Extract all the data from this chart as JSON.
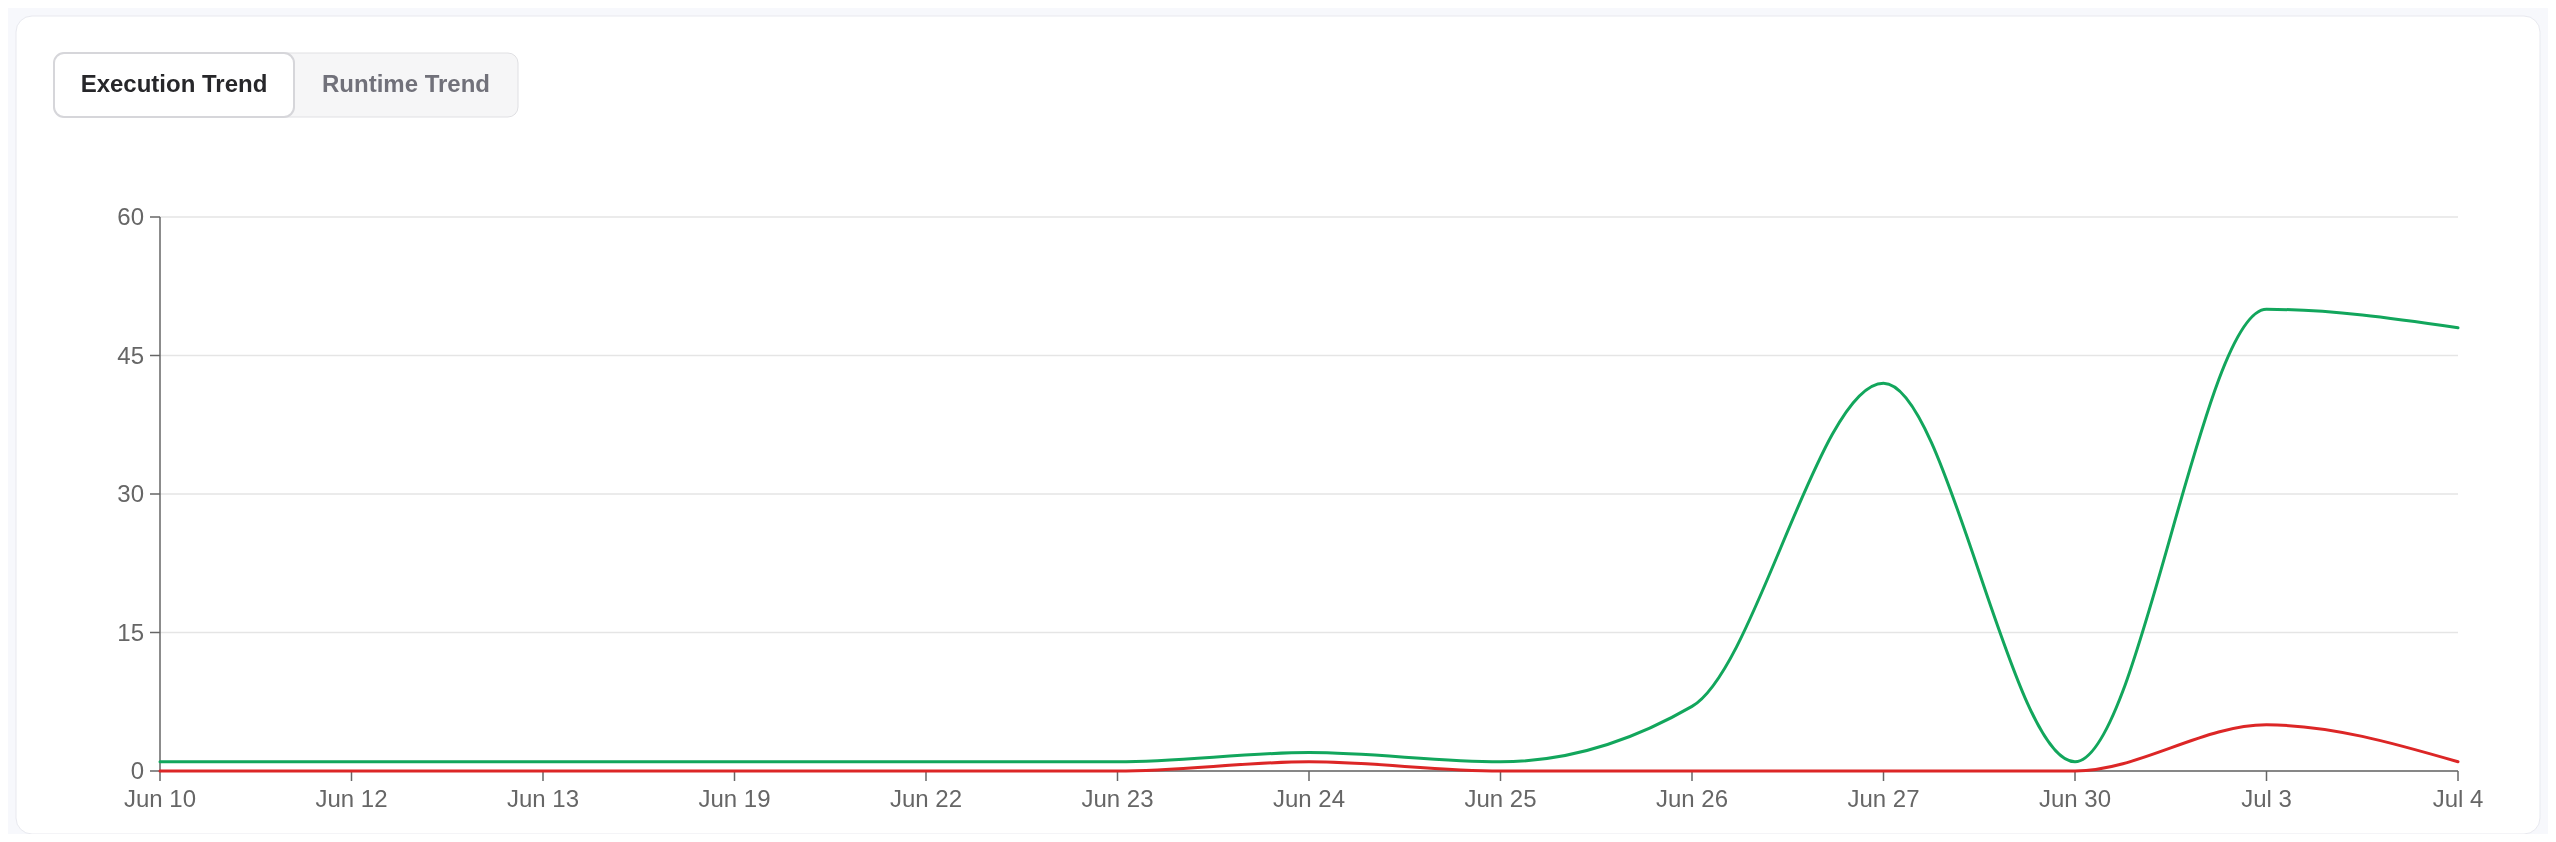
{
  "chart_data": {
    "type": "line",
    "annotations": [
      "Execution Trend",
      "Runtime Trend"
    ],
    "categories": [
      "Jun 10",
      "Jun 12",
      "Jun 13",
      "Jun 19",
      "Jun 22",
      "Jun 23",
      "Jun 24",
      "Jun 25",
      "Jun 26",
      "Jun 27",
      "Jun 30",
      "Jul 3",
      "Jul 4"
    ],
    "series": [
      {
        "color": "#12a65c",
        "values": [
          1,
          1,
          1,
          1,
          1,
          1,
          2,
          1,
          7,
          42,
          1,
          50,
          48
        ]
      },
      {
        "color": "#dc2626",
        "values": [
          0,
          0,
          0,
          0,
          0,
          0,
          1,
          0,
          0,
          0,
          0,
          5,
          1
        ]
      }
    ],
    "ylim": [
      0,
      60
    ],
    "yticks": [
      0,
      15,
      30,
      45,
      60
    ],
    "grid": "y",
    "marker": "none",
    "line_style": "solid"
  }
}
